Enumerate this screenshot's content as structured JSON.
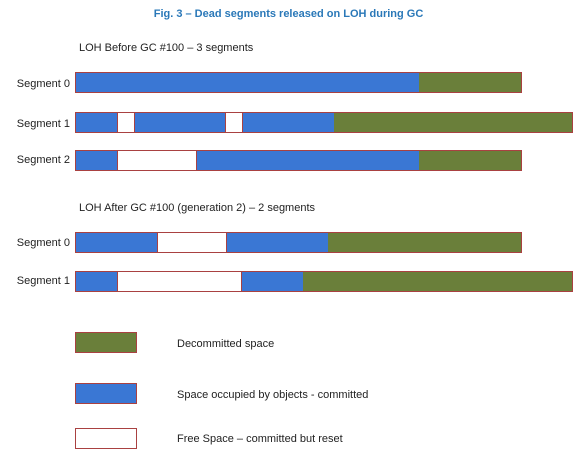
{
  "title": "Fig. 3 – Dead segments released on LOH during GC",
  "colors": {
    "decommitted": "#6a7f3a",
    "occupied": "#3a77d4",
    "free": "#ffffff",
    "border": "#a94141"
  },
  "before": {
    "heading": "LOH Before GC #100 – 3 segments",
    "segments": [
      {
        "label": "Segment 0",
        "blocks": [
          {
            "kind": "occupied",
            "size": 345
          },
          {
            "kind": "decommitted",
            "size": 102
          }
        ]
      },
      {
        "label": "Segment 1",
        "blocks": [
          {
            "kind": "occupied",
            "size": 41
          },
          {
            "kind": "free",
            "size": 18
          },
          {
            "kind": "occupied",
            "size": 91
          },
          {
            "kind": "free",
            "size": 18
          },
          {
            "kind": "occupied",
            "size": 91
          },
          {
            "kind": "decommitted",
            "size": 239
          }
        ]
      },
      {
        "label": "Segment 2",
        "blocks": [
          {
            "kind": "occupied",
            "size": 41
          },
          {
            "kind": "free",
            "size": 81
          },
          {
            "kind": "occupied",
            "size": 223
          },
          {
            "kind": "decommitted",
            "size": 102
          }
        ]
      }
    ]
  },
  "after": {
    "heading": "LOH After GC #100 (generation 2) – 2 segments",
    "segments": [
      {
        "label": "Segment 0",
        "blocks": [
          {
            "kind": "occupied",
            "size": 81
          },
          {
            "kind": "free",
            "size": 71
          },
          {
            "kind": "occupied",
            "size": 101
          },
          {
            "kind": "decommitted",
            "size": 194
          }
        ]
      },
      {
        "label": "Segment 1",
        "blocks": [
          {
            "kind": "occupied",
            "size": 41
          },
          {
            "kind": "free",
            "size": 126
          },
          {
            "kind": "occupied",
            "size": 61
          },
          {
            "kind": "decommitted",
            "size": 270
          }
        ]
      }
    ]
  },
  "legend": [
    {
      "kind": "decommitted",
      "label": "Decommitted space"
    },
    {
      "kind": "occupied",
      "label": "Space occupied by objects - committed"
    },
    {
      "kind": "free",
      "label": "Free Space – committed but reset"
    }
  ]
}
